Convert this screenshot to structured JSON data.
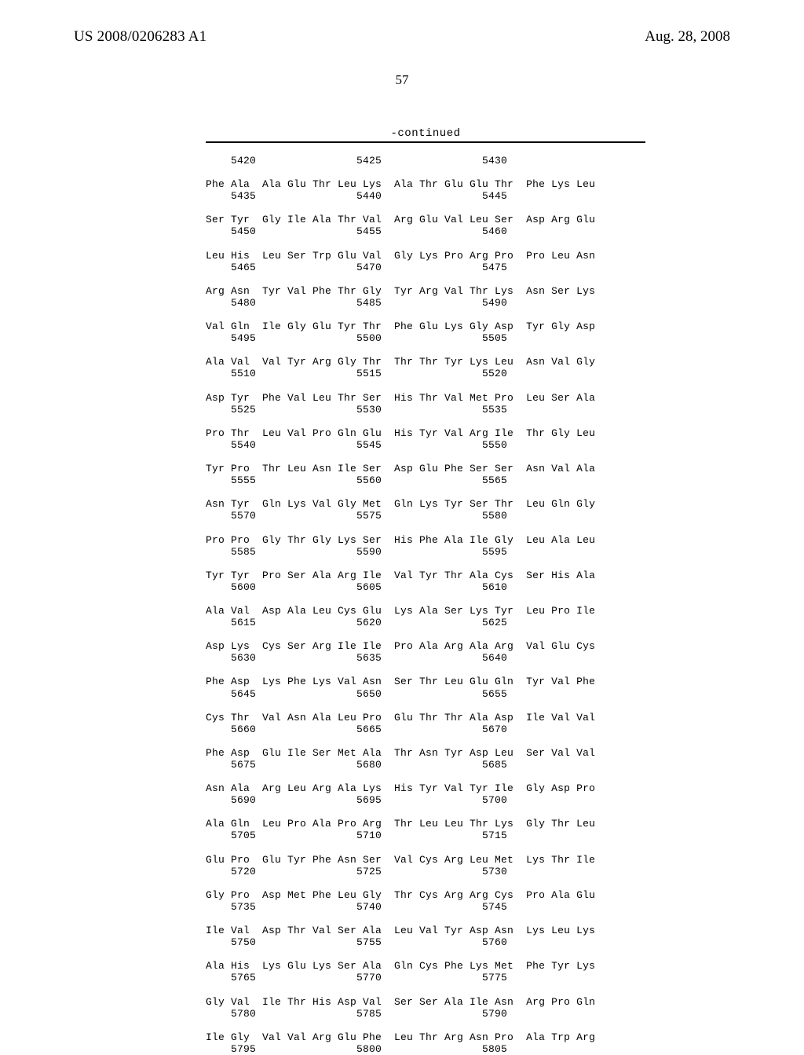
{
  "header": {
    "publication_number": "US 2008/0206283 A1",
    "publication_date": "Aug. 28, 2008"
  },
  "page_number": "57",
  "continued_label": "-continued",
  "sequence_rows": [
    {
      "aa": "",
      "nums": "    5420                5425                5430"
    },
    {
      "aa": "Phe Ala  Ala Glu Thr Leu Lys  Ala Thr Glu Glu Thr  Phe Lys Leu",
      "nums": "    5435                5440                5445"
    },
    {
      "aa": "Ser Tyr  Gly Ile Ala Thr Val  Arg Glu Val Leu Ser  Asp Arg Glu",
      "nums": "    5450                5455                5460"
    },
    {
      "aa": "Leu His  Leu Ser Trp Glu Val  Gly Lys Pro Arg Pro  Pro Leu Asn",
      "nums": "    5465                5470                5475"
    },
    {
      "aa": "Arg Asn  Tyr Val Phe Thr Gly  Tyr Arg Val Thr Lys  Asn Ser Lys",
      "nums": "    5480                5485                5490"
    },
    {
      "aa": "Val Gln  Ile Gly Glu Tyr Thr  Phe Glu Lys Gly Asp  Tyr Gly Asp",
      "nums": "    5495                5500                5505"
    },
    {
      "aa": "Ala Val  Val Tyr Arg Gly Thr  Thr Thr Tyr Lys Leu  Asn Val Gly",
      "nums": "    5510                5515                5520"
    },
    {
      "aa": "Asp Tyr  Phe Val Leu Thr Ser  His Thr Val Met Pro  Leu Ser Ala",
      "nums": "    5525                5530                5535"
    },
    {
      "aa": "Pro Thr  Leu Val Pro Gln Glu  His Tyr Val Arg Ile  Thr Gly Leu",
      "nums": "    5540                5545                5550"
    },
    {
      "aa": "Tyr Pro  Thr Leu Asn Ile Ser  Asp Glu Phe Ser Ser  Asn Val Ala",
      "nums": "    5555                5560                5565"
    },
    {
      "aa": "Asn Tyr  Gln Lys Val Gly Met  Gln Lys Tyr Ser Thr  Leu Gln Gly",
      "nums": "    5570                5575                5580"
    },
    {
      "aa": "Pro Pro  Gly Thr Gly Lys Ser  His Phe Ala Ile Gly  Leu Ala Leu",
      "nums": "    5585                5590                5595"
    },
    {
      "aa": "Tyr Tyr  Pro Ser Ala Arg Ile  Val Tyr Thr Ala Cys  Ser His Ala",
      "nums": "    5600                5605                5610"
    },
    {
      "aa": "Ala Val  Asp Ala Leu Cys Glu  Lys Ala Ser Lys Tyr  Leu Pro Ile",
      "nums": "    5615                5620                5625"
    },
    {
      "aa": "Asp Lys  Cys Ser Arg Ile Ile  Pro Ala Arg Ala Arg  Val Glu Cys",
      "nums": "    5630                5635                5640"
    },
    {
      "aa": "Phe Asp  Lys Phe Lys Val Asn  Ser Thr Leu Glu Gln  Tyr Val Phe",
      "nums": "    5645                5650                5655"
    },
    {
      "aa": "Cys Thr  Val Asn Ala Leu Pro  Glu Thr Thr Ala Asp  Ile Val Val",
      "nums": "    5660                5665                5670"
    },
    {
      "aa": "Phe Asp  Glu Ile Ser Met Ala  Thr Asn Tyr Asp Leu  Ser Val Val",
      "nums": "    5675                5680                5685"
    },
    {
      "aa": "Asn Ala  Arg Leu Arg Ala Lys  His Tyr Val Tyr Ile  Gly Asp Pro",
      "nums": "    5690                5695                5700"
    },
    {
      "aa": "Ala Gln  Leu Pro Ala Pro Arg  Thr Leu Leu Thr Lys  Gly Thr Leu",
      "nums": "    5705                5710                5715"
    },
    {
      "aa": "Glu Pro  Glu Tyr Phe Asn Ser  Val Cys Arg Leu Met  Lys Thr Ile",
      "nums": "    5720                5725                5730"
    },
    {
      "aa": "Gly Pro  Asp Met Phe Leu Gly  Thr Cys Arg Arg Cys  Pro Ala Glu",
      "nums": "    5735                5740                5745"
    },
    {
      "aa": "Ile Val  Asp Thr Val Ser Ala  Leu Val Tyr Asp Asn  Lys Leu Lys",
      "nums": "    5750                5755                5760"
    },
    {
      "aa": "Ala His  Lys Glu Lys Ser Ala  Gln Cys Phe Lys Met  Phe Tyr Lys",
      "nums": "    5765                5770                5775"
    },
    {
      "aa": "Gly Val  Ile Thr His Asp Val  Ser Ser Ala Ile Asn  Arg Pro Gln",
      "nums": "    5780                5785                5790"
    },
    {
      "aa": "Ile Gly  Val Val Arg Glu Phe  Leu Thr Arg Asn Pro  Ala Trp Arg",
      "nums": "    5795                5800                5805"
    }
  ]
}
